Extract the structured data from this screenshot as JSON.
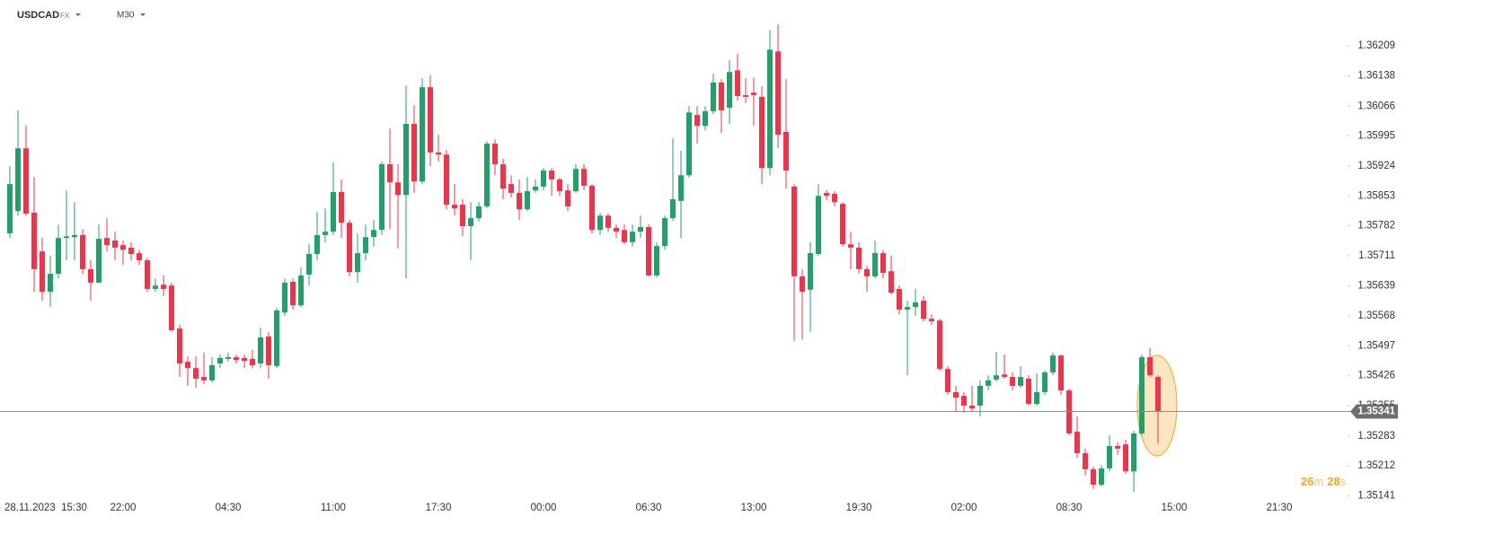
{
  "header": {
    "symbol": "USDCAD",
    "market": "FX",
    "timeframe": "M30"
  },
  "countdown": {
    "minutes": 26,
    "minutes_unit": "m",
    "seconds": 28,
    "seconds_unit": "s"
  },
  "chart_data": {
    "type": "candlestick",
    "up_color": "#22a06b",
    "down_color": "#f0334a",
    "open": [
      1.35764,
      1.35817,
      1.35966,
      1.35813,
      1.35721,
      1.35625,
      1.35668,
      1.35753,
      1.35755,
      1.3576,
      1.35679,
      1.35647,
      1.35753,
      1.35747,
      1.35736,
      1.3573,
      1.35717,
      1.357,
      1.35632,
      1.35642,
      1.3564,
      1.35538,
      1.35459,
      1.35444,
      1.35423,
      1.35415,
      1.35455,
      1.35466,
      1.3547,
      1.35468,
      1.35466,
      1.35455,
      1.35519,
      1.35449,
      1.35576,
      1.35649,
      1.35593,
      1.35666,
      1.35715,
      1.3576,
      1.35768,
      1.35862,
      1.35789,
      1.35672,
      1.35717,
      1.35755,
      1.35772,
      1.35928,
      1.35885,
      1.35855,
      1.36024,
      1.35887,
      1.36111,
      1.35956,
      1.35951,
      1.35832,
      1.35832,
      1.35781,
      1.358,
      1.35828,
      1.35977,
      1.35928,
      1.35881,
      1.3586,
      1.35821,
      1.35866,
      1.35875,
      1.35913,
      1.35892,
      1.35866,
      1.35864,
      1.35917,
      1.35877,
      1.35772,
      1.35806,
      1.35777,
      1.35772,
      1.35743,
      1.35768,
      1.35779,
      1.35664,
      1.35734,
      1.358,
      1.35841,
      1.35902,
      1.36045,
      1.36019,
      1.36054,
      1.36122,
      1.36062,
      1.36151,
      1.36092,
      1.36098,
      1.36088,
      1.35919,
      1.36196,
      1.36005,
      1.35875,
      1.35662,
      1.3563,
      1.35715,
      1.3586,
      1.35858,
      1.35834,
      1.35738,
      1.3573,
      1.35679,
      1.35662,
      1.35717,
      1.35674,
      1.35632,
      1.35583,
      1.35589,
      1.35604,
      1.35561,
      1.35557,
      1.35442,
      1.35387,
      1.35378,
      1.35355,
      1.35355,
      1.35402,
      1.35417,
      1.35429,
      1.35423,
      1.35402,
      1.35419,
      1.35359,
      1.35387,
      1.35434,
      1.35474,
      1.35391,
      1.35293,
      1.35242,
      1.35204,
      1.35167,
      1.35206,
      1.35259,
      1.35263,
      1.35199,
      1.35289,
      1.3547,
      1.35423
    ],
    "high": [
      1.35924,
      1.36056,
      1.36019,
      1.35898,
      1.35753,
      1.35711,
      1.35785,
      1.35866,
      1.35838,
      1.35774,
      1.357,
      1.35785,
      1.358,
      1.35768,
      1.35747,
      1.35743,
      1.35725,
      1.35706,
      1.35657,
      1.35664,
      1.35647,
      1.35547,
      1.35472,
      1.35472,
      1.35481,
      1.3547,
      1.35476,
      1.35481,
      1.35476,
      1.35476,
      1.35487,
      1.3554,
      1.3553,
      1.35587,
      1.35657,
      1.35657,
      1.35683,
      1.35738,
      1.35815,
      1.35823,
      1.35932,
      1.35892,
      1.35796,
      1.35764,
      1.35785,
      1.35796,
      1.35934,
      1.36013,
      1.35928,
      1.36115,
      1.36068,
      1.36132,
      1.36139,
      1.35998,
      1.35962,
      1.35881,
      1.35845,
      1.35838,
      1.35838,
      1.35983,
      1.35987,
      1.35941,
      1.35902,
      1.35892,
      1.35898,
      1.35892,
      1.35919,
      1.35919,
      1.35896,
      1.35881,
      1.35928,
      1.35928,
      1.35881,
      1.35813,
      1.35811,
      1.35785,
      1.35785,
      1.35785,
      1.35806,
      1.35785,
      1.35743,
      1.35806,
      1.3599,
      1.3596,
      1.36066,
      1.36066,
      1.36066,
      1.36143,
      1.3613,
      1.36175,
      1.3619,
      1.36132,
      1.36134,
      1.36113,
      1.36247,
      1.3626,
      1.3613,
      1.35881,
      1.35679,
      1.35743,
      1.35881,
      1.35866,
      1.35864,
      1.35838,
      1.35768,
      1.35743,
      1.35687,
      1.35747,
      1.35725,
      1.35711,
      1.3564,
      1.35604,
      1.35632,
      1.35615,
      1.35572,
      1.35561,
      1.35449,
      1.35402,
      1.35387,
      1.35402,
      1.35415,
      1.35427,
      1.35483,
      1.35476,
      1.35434,
      1.35449,
      1.35427,
      1.35432,
      1.35438,
      1.35481,
      1.35476,
      1.35395,
      1.35329,
      1.35253,
      1.3521,
      1.35214,
      1.35285,
      1.35268,
      1.35274,
      1.35295,
      1.35476,
      1.35491,
      1.35427
    ],
    "low": [
      1.35753,
      1.35806,
      1.35806,
      1.35625,
      1.35604,
      1.35589,
      1.35657,
      1.357,
      1.357,
      1.35668,
      1.35604,
      1.35645,
      1.35721,
      1.357,
      1.35689,
      1.357,
      1.35689,
      1.35625,
      1.35625,
      1.35615,
      1.3553,
      1.35423,
      1.35402,
      1.35397,
      1.35406,
      1.3541,
      1.35444,
      1.35459,
      1.35455,
      1.35444,
      1.35444,
      1.35444,
      1.35419,
      1.35444,
      1.35568,
      1.35583,
      1.35589,
      1.3564,
      1.357,
      1.35743,
      1.3576,
      1.35753,
      1.35662,
      1.35647,
      1.357,
      1.35732,
      1.3576,
      1.35774,
      1.35728,
      1.35657,
      1.3586,
      1.35881,
      1.35924,
      1.35934,
      1.35821,
      1.35806,
      1.35757,
      1.357,
      1.35792,
      1.35823,
      1.35902,
      1.35845,
      1.35849,
      1.35796,
      1.35817,
      1.3586,
      1.35866,
      1.35853,
      1.35853,
      1.35817,
      1.3586,
      1.35866,
      1.35764,
      1.3576,
      1.35768,
      1.35753,
      1.35738,
      1.35732,
      1.35753,
      1.35662,
      1.35659,
      1.35725,
      1.35794,
      1.35753,
      1.35896,
      1.35977,
      1.36009,
      1.36047,
      1.36002,
      1.36024,
      1.36079,
      1.36073,
      1.36019,
      1.35881,
      1.35902,
      1.35966,
      1.3587,
      1.35508,
      1.35512,
      1.3553,
      1.35711,
      1.35843,
      1.35828,
      1.35732,
      1.35679,
      1.35668,
      1.35625,
      1.35657,
      1.35657,
      1.35619,
      1.35572,
      1.35427,
      1.35568,
      1.35555,
      1.35547,
      1.35438,
      1.3538,
      1.35342,
      1.35338,
      1.35342,
      1.35329,
      1.35391,
      1.35412,
      1.35419,
      1.35391,
      1.35397,
      1.35355,
      1.35355,
      1.3538,
      1.35427,
      1.3538,
      1.35285,
      1.35231,
      1.35189,
      1.35157,
      1.35163,
      1.35199,
      1.35238,
      1.35193,
      1.3515,
      1.35285,
      1.35423,
      1.35265
    ],
    "close": [
      1.35881,
      1.35966,
      1.35811,
      1.35679,
      1.35625,
      1.35668,
      1.35753,
      1.35757,
      1.3576,
      1.35679,
      1.35647,
      1.35751,
      1.35736,
      1.3573,
      1.35725,
      1.35715,
      1.357,
      1.35632,
      1.3564,
      1.35632,
      1.35534,
      1.35455,
      1.35444,
      1.35419,
      1.35415,
      1.35451,
      1.35468,
      1.3547,
      1.35463,
      1.35461,
      1.35451,
      1.35517,
      1.35451,
      1.35581,
      1.35647,
      1.35593,
      1.35664,
      1.35715,
      1.3576,
      1.35768,
      1.35862,
      1.35789,
      1.35672,
      1.35717,
      1.35755,
      1.35772,
      1.35928,
      1.35885,
      1.35855,
      1.36024,
      1.35887,
      1.36111,
      1.35956,
      1.35951,
      1.35832,
      1.35823,
      1.35781,
      1.358,
      1.35828,
      1.35977,
      1.35928,
      1.3587,
      1.3586,
      1.35821,
      1.35864,
      1.35875,
      1.35913,
      1.35892,
      1.35864,
      1.35828,
      1.35917,
      1.35877,
      1.35772,
      1.35806,
      1.35777,
      1.35768,
      1.35743,
      1.35768,
      1.35779,
      1.35664,
      1.35734,
      1.358,
      1.35845,
      1.35902,
      1.36051,
      1.36019,
      1.36054,
      1.36122,
      1.36056,
      1.36147,
      1.3609,
      1.36088,
      1.36092,
      1.35919,
      1.362,
      1.35998,
      1.35913,
      1.35662,
      1.35625,
      1.35717,
      1.35853,
      1.35853,
      1.35838,
      1.35738,
      1.3573,
      1.35679,
      1.35662,
      1.35717,
      1.3567,
      1.35623,
      1.35583,
      1.35589,
      1.356,
      1.35561,
      1.35555,
      1.35442,
      1.35387,
      1.35374,
      1.35355,
      1.35348,
      1.35402,
      1.35415,
      1.35427,
      1.35423,
      1.35402,
      1.35423,
      1.35359,
      1.35387,
      1.35434,
      1.35474,
      1.35391,
      1.35289,
      1.35242,
      1.35204,
      1.35167,
      1.35206,
      1.35259,
      1.35253,
      1.35199,
      1.35289,
      1.3547,
      1.35427,
      1.35341
    ],
    "last_price": 1.35341,
    "xlim": [
      -1.22,
      165.44
    ],
    "xticks": [
      {
        "value": 1,
        "label": "28.11.2023  15:30"
      },
      {
        "value": 14,
        "label": "22:00"
      },
      {
        "value": 27,
        "label": "04:30"
      },
      {
        "value": 40,
        "label": "11:00"
      },
      {
        "value": 53,
        "label": "17:30"
      },
      {
        "value": 66,
        "label": "00:00"
      },
      {
        "value": 79,
        "label": "06:30"
      },
      {
        "value": 92,
        "label": "13:00"
      },
      {
        "value": 105,
        "label": "19:30"
      },
      {
        "value": 118,
        "label": "02:00"
      },
      {
        "value": 131,
        "label": "08:30"
      },
      {
        "value": 144,
        "label": "15:00"
      },
      {
        "value": 157,
        "label": "21:30"
      }
    ],
    "ylim": [
      1.35127,
      1.36318
    ],
    "yticks": [
      1.35141,
      1.35212,
      1.35283,
      1.35355,
      1.35426,
      1.35497,
      1.35568,
      1.35639,
      1.35711,
      1.35782,
      1.35853,
      1.35924,
      1.35995,
      1.36066,
      1.36138,
      1.36209
    ]
  }
}
